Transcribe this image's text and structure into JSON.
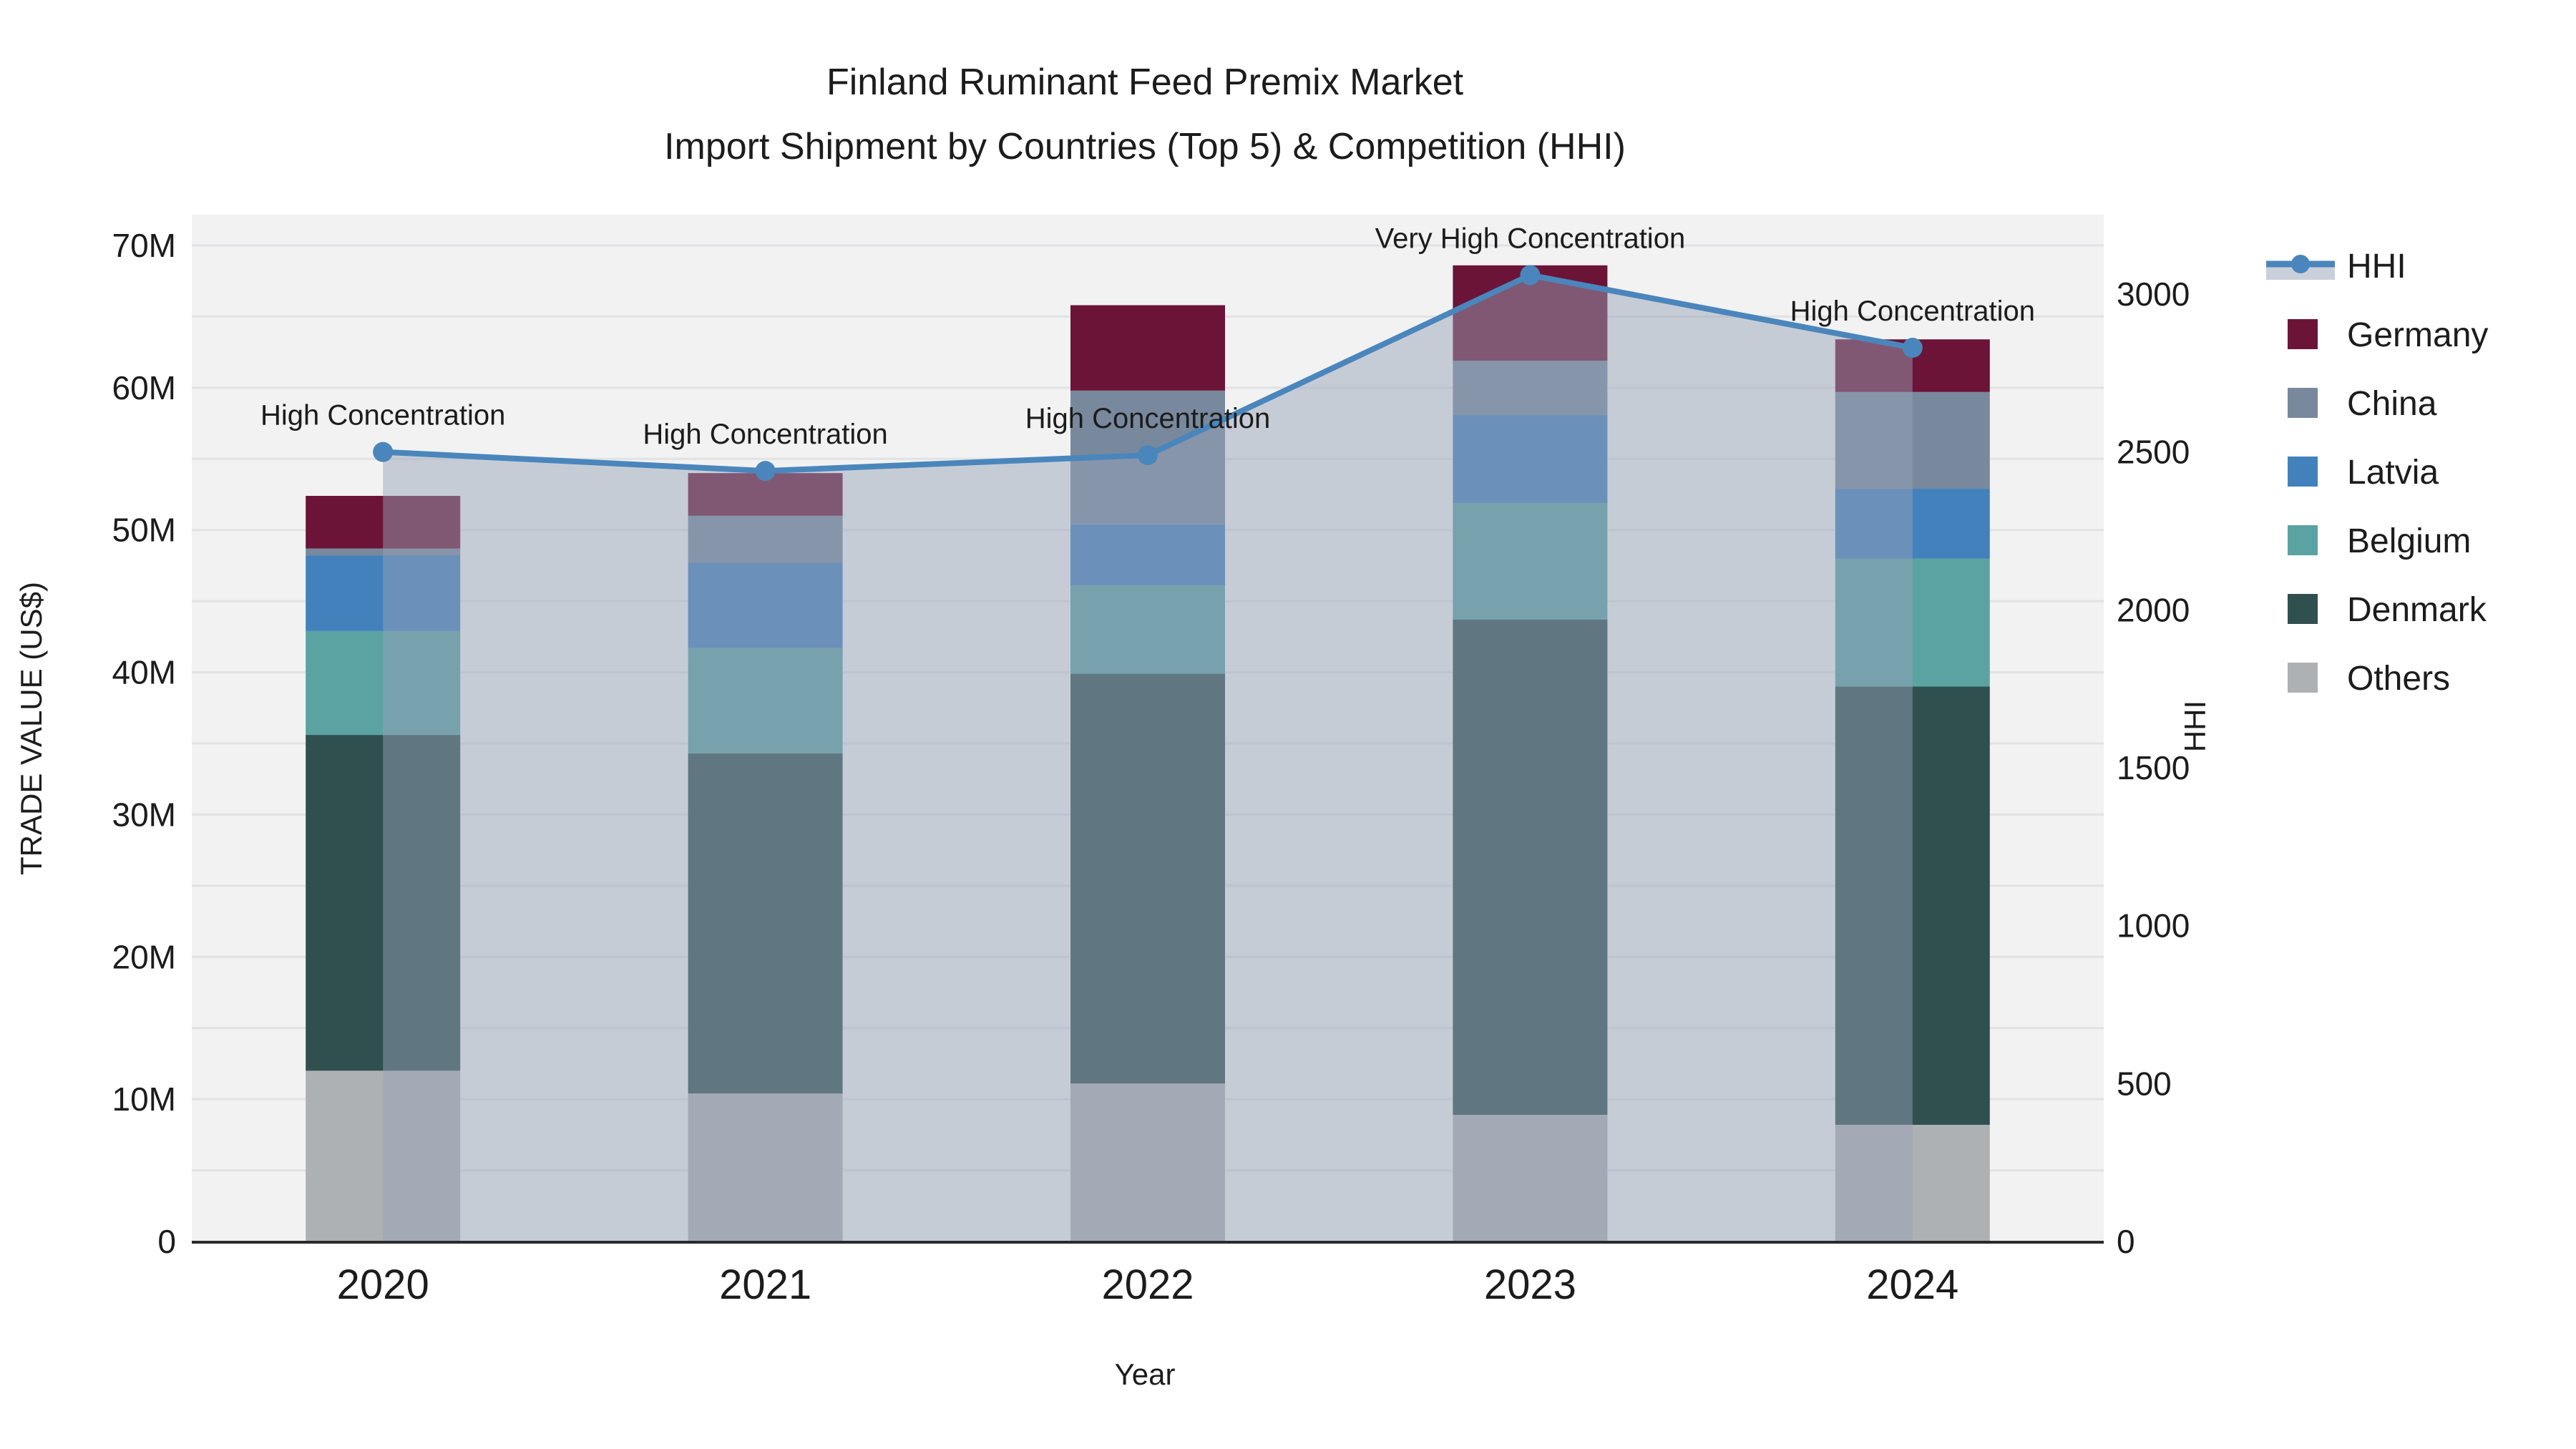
{
  "chart_data": {
    "type": "bar",
    "subtype": "stacked-bars-with-line-overlay",
    "title_line1": "Finland Ruminant Feed Premix Market",
    "title_line2": "Import Shipment by Countries (Top 5) & Competition (HHI)",
    "xlabel": "Year",
    "ylabel_left": "TRADE VALUE (US$)",
    "ylabel_right": "HHI",
    "unit": "million US$",
    "categories": [
      "2020",
      "2021",
      "2022",
      "2023",
      "2024"
    ],
    "series": [
      {
        "name": "Germany",
        "color": "#6b1437",
        "values": [
          3.7,
          3.0,
          6.0,
          6.7,
          3.7
        ]
      },
      {
        "name": "China",
        "color": "#78899d",
        "values": [
          0.5,
          3.3,
          9.4,
          3.8,
          6.8
        ]
      },
      {
        "name": "Latvia",
        "color": "#4381bd",
        "values": [
          5.3,
          6.0,
          4.3,
          6.2,
          4.9
        ]
      },
      {
        "name": "Belgium",
        "color": "#5ba2a3",
        "values": [
          7.3,
          7.4,
          6.2,
          8.2,
          9.0
        ]
      },
      {
        "name": "Denmark",
        "color": "#2f504f",
        "values": [
          23.6,
          23.9,
          28.8,
          34.8,
          30.8
        ]
      },
      {
        "name": "Others",
        "color": "#aeb1b3",
        "values": [
          12.0,
          10.4,
          11.1,
          8.9,
          8.2
        ]
      }
    ],
    "stack_order_bottom_to_top": [
      "Others",
      "Denmark",
      "Belgium",
      "Latvia",
      "China",
      "Germany"
    ],
    "bar_totals": [
      52.4,
      54.0,
      65.8,
      68.6,
      63.4
    ],
    "line_series": {
      "name": "HHI",
      "color": "#4a86bc",
      "area_fill": "rgba(150,162,184,0.48)",
      "legend_area_swatch": "#c9d0da",
      "values": [
        2500,
        2440,
        2490,
        3060,
        2830
      ]
    },
    "annotations": [
      {
        "category": "2020",
        "label": "High Concentration"
      },
      {
        "category": "2021",
        "label": "High Concentration"
      },
      {
        "category": "2022",
        "label": "High Concentration"
      },
      {
        "category": "2023",
        "label": "Very High Concentration"
      },
      {
        "category": "2024",
        "label": "High Concentration"
      }
    ],
    "y_left": {
      "min": 0,
      "max": 70,
      "tick_values": [
        0,
        10,
        20,
        30,
        40,
        50,
        60,
        70
      ],
      "tick_labels": [
        "0",
        "10M",
        "20M",
        "30M",
        "40M",
        "50M",
        "60M",
        "70M"
      ],
      "minor_gridline_step": 5
    },
    "y_right": {
      "min": 0,
      "max": 3000,
      "tick_values": [
        0,
        500,
        1000,
        1500,
        2000,
        2500,
        3000
      ],
      "tick_labels": [
        "0",
        "500",
        "1000",
        "1500",
        "2000",
        "2500",
        "3000"
      ]
    },
    "legend": {
      "entries": [
        "HHI",
        "Germany",
        "China",
        "Latvia",
        "Belgium",
        "Denmark",
        "Others"
      ],
      "position": "right"
    },
    "colors": {
      "plot_background": "#f2f2f2",
      "gridline": "#e2e2e5",
      "axis_line": "#2b2b2b",
      "text": "#1c1c1c"
    },
    "grid": "horizontal gridlines every 5M, labels every 10M"
  }
}
